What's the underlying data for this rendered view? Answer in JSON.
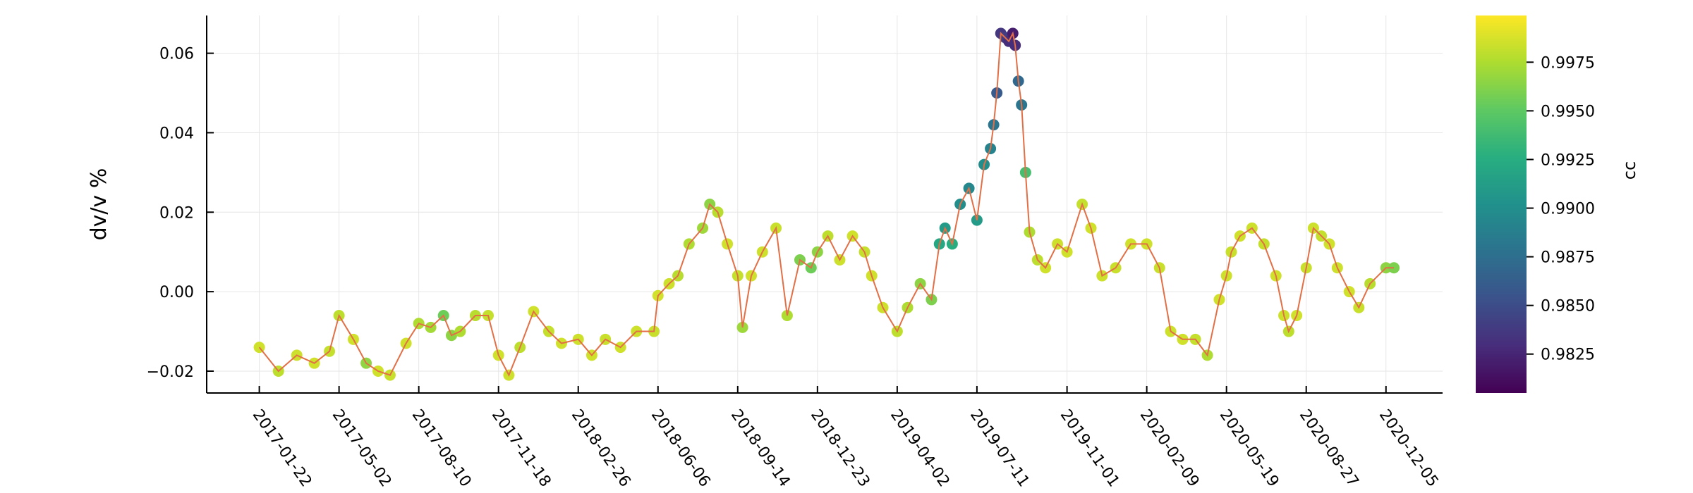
{
  "chart_data": {
    "type": "scatter",
    "title": "",
    "xlabel": "",
    "ylabel": "dv/v %",
    "x_tick_labels": [
      "2017-01-22",
      "2017-05-02",
      "2017-08-10",
      "2017-11-18",
      "2018-02-26",
      "2018-06-06",
      "2018-09-14",
      "2018-12-23",
      "2019-04-02",
      "2019-07-11",
      "2019-11-01",
      "2020-02-09",
      "2020-05-19",
      "2020-08-27",
      "2020-12-05"
    ],
    "xlim": [
      "2016-11-17",
      "2021-02-14"
    ],
    "y_tick_labels": [
      "−0.02",
      "0.00",
      "0.02",
      "0.04",
      "0.06"
    ],
    "y_tick_values": [
      -0.02,
      0.0,
      0.02,
      0.04,
      0.06
    ],
    "ylim": [
      -0.0255,
      0.0695
    ],
    "grid": true,
    "legend": "none",
    "line_color": "#e26f46",
    "colorbar": {
      "label": "cc",
      "colormap": "viridis",
      "range": [
        0.9805,
        0.9999
      ],
      "tick_values": [
        0.9825,
        0.985,
        0.9875,
        0.99,
        0.9925,
        0.995,
        0.9975
      ],
      "tick_labels": [
        "0.9825",
        "0.9850",
        "0.9875",
        "0.9900",
        "0.9925",
        "0.9950",
        "0.9975"
      ]
    },
    "series": [
      {
        "x": [
          "2017-01-22",
          "2017-02-15",
          "2017-03-10",
          "2017-04-01",
          "2017-04-20",
          "2017-05-02",
          "2017-05-20",
          "2017-06-05",
          "2017-06-20",
          "2017-07-05",
          "2017-07-25",
          "2017-08-10",
          "2017-08-25",
          "2017-09-10",
          "2017-09-20",
          "2017-10-01",
          "2017-10-20",
          "2017-11-05",
          "2017-11-18",
          "2017-12-01",
          "2017-12-15",
          "2018-01-01",
          "2018-01-20",
          "2018-02-05",
          "2018-02-26",
          "2018-03-15",
          "2018-04-01",
          "2018-04-20",
          "2018-05-10",
          "2018-06-01",
          "2018-06-06",
          "2018-06-20",
          "2018-07-01",
          "2018-07-15",
          "2018-08-01",
          "2018-08-10",
          "2018-08-20",
          "2018-09-01",
          "2018-09-14",
          "2018-09-20",
          "2018-10-01",
          "2018-10-15",
          "2018-11-01",
          "2018-11-15",
          "2018-12-01",
          "2018-12-15",
          "2018-12-23",
          "2019-01-05",
          "2019-01-20",
          "2019-02-05",
          "2019-02-20",
          "2019-03-01",
          "2019-03-15",
          "2019-04-02",
          "2019-04-15",
          "2019-05-01",
          "2019-05-15",
          "2019-05-25",
          "2019-06-01",
          "2019-06-10",
          "2019-06-20",
          "2019-07-01",
          "2019-07-11",
          "2019-07-20",
          "2019-07-28",
          "2019-08-01",
          "2019-08-05",
          "2019-08-10",
          "2019-08-15",
          "2019-08-20",
          "2019-08-25",
          "2019-08-28",
          "2019-09-01",
          "2019-09-05",
          "2019-09-10",
          "2019-09-15",
          "2019-09-25",
          "2019-10-05",
          "2019-10-20",
          "2019-11-01",
          "2019-11-20",
          "2019-12-01",
          "2019-12-15",
          "2020-01-01",
          "2020-01-20",
          "2020-02-09",
          "2020-02-25",
          "2020-03-10",
          "2020-03-25",
          "2020-04-10",
          "2020-04-25",
          "2020-05-10",
          "2020-05-19",
          "2020-05-25",
          "2020-06-05",
          "2020-06-20",
          "2020-07-05",
          "2020-07-20",
          "2020-07-30",
          "2020-08-05",
          "2020-08-15",
          "2020-08-27",
          "2020-09-05",
          "2020-09-15",
          "2020-09-25",
          "2020-10-05",
          "2020-10-20",
          "2020-11-01",
          "2020-11-15",
          "2020-12-05",
          "2020-12-15"
        ],
        "y": [
          -0.014,
          -0.02,
          -0.016,
          -0.018,
          -0.015,
          -0.006,
          -0.012,
          -0.018,
          -0.02,
          -0.021,
          -0.013,
          -0.008,
          -0.009,
          -0.006,
          -0.011,
          -0.01,
          -0.006,
          -0.006,
          -0.016,
          -0.021,
          -0.014,
          -0.005,
          -0.01,
          -0.013,
          -0.012,
          -0.016,
          -0.012,
          -0.014,
          -0.01,
          -0.01,
          -0.001,
          0.002,
          0.004,
          0.012,
          0.016,
          0.022,
          0.02,
          0.012,
          0.004,
          -0.009,
          0.004,
          0.01,
          0.016,
          -0.006,
          0.008,
          0.006,
          0.01,
          0.014,
          0.008,
          0.014,
          0.01,
          0.004,
          -0.004,
          -0.01,
          -0.004,
          0.002,
          -0.002,
          0.012,
          0.016,
          0.012,
          0.022,
          0.026,
          0.018,
          0.032,
          0.036,
          0.042,
          0.05,
          0.065,
          0.064,
          0.063,
          0.065,
          0.062,
          0.053,
          0.047,
          0.03,
          0.015,
          0.008,
          0.006,
          0.012,
          0.01,
          0.022,
          0.016,
          0.004,
          0.006,
          0.012,
          0.012,
          0.006,
          -0.01,
          -0.012,
          -0.012,
          -0.016,
          -0.002,
          0.004,
          0.01,
          0.014,
          0.016,
          0.012,
          0.004,
          -0.006,
          -0.01,
          -0.006,
          0.006,
          0.016,
          0.014,
          0.012,
          0.006,
          0.0,
          -0.004,
          0.002,
          0.006,
          0.006
        ],
        "cc": [
          0.9985,
          0.998,
          0.9984,
          0.9985,
          0.9982,
          0.998,
          0.9985,
          0.9966,
          0.9985,
          0.9983,
          0.9985,
          0.9975,
          0.9972,
          0.9955,
          0.9965,
          0.9975,
          0.9978,
          0.9982,
          0.9985,
          0.9984,
          0.998,
          0.9985,
          0.9982,
          0.9985,
          0.9984,
          0.9985,
          0.9983,
          0.9985,
          0.9984,
          0.9983,
          0.9986,
          0.9984,
          0.9978,
          0.9975,
          0.997,
          0.9965,
          0.9978,
          0.9985,
          0.9982,
          0.997,
          0.9985,
          0.9984,
          0.9983,
          0.9975,
          0.996,
          0.9955,
          0.9965,
          0.998,
          0.9984,
          0.9985,
          0.9982,
          0.9985,
          0.9984,
          0.998,
          0.9975,
          0.9965,
          0.996,
          0.992,
          0.991,
          0.9925,
          0.99,
          0.9895,
          0.991,
          0.99,
          0.989,
          0.988,
          0.986,
          0.9835,
          0.984,
          0.983,
          0.982,
          0.983,
          0.987,
          0.988,
          0.994,
          0.9975,
          0.998,
          0.9985,
          0.9984,
          0.9985,
          0.9982,
          0.9985,
          0.9984,
          0.9983,
          0.9985,
          0.9985,
          0.9983,
          0.9984,
          0.9985,
          0.9982,
          0.9975,
          0.9985,
          0.9984,
          0.9983,
          0.9985,
          0.9984,
          0.9982,
          0.9985,
          0.9984,
          0.998,
          0.9985,
          0.9983,
          0.9984,
          0.9982,
          0.9985,
          0.9984,
          0.9985,
          0.9983,
          0.9978,
          0.9965,
          0.996
        ]
      }
    ]
  }
}
